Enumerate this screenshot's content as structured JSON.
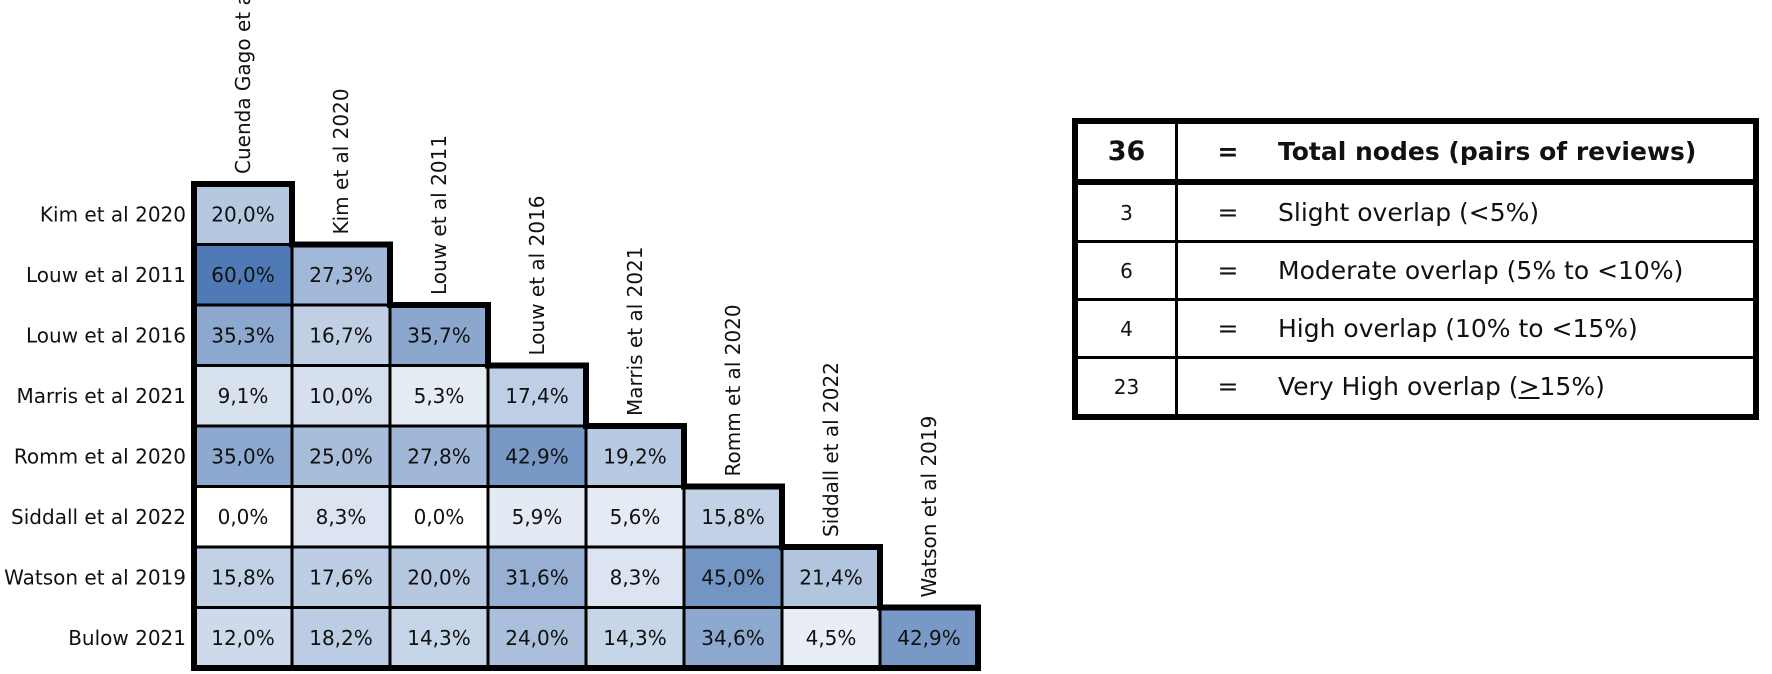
{
  "chart_data": {
    "type": "heatmap",
    "title": "",
    "columns": [
      "Cuenda Gago et a",
      "Kim et al 2020",
      "Louw et al 2011",
      "Louw et al 2016",
      "Marris et al 2021",
      "Romm et al 2020",
      "Siddall et al 2022",
      "Watson et al 2019"
    ],
    "rows": [
      {
        "label": "Kim et al 2020",
        "values": [
          "20,0%"
        ]
      },
      {
        "label": "Louw et al 2011",
        "values": [
          "60,0%",
          "27,3%"
        ]
      },
      {
        "label": "Louw et al 2016",
        "values": [
          "35,3%",
          "16,7%",
          "35,7%"
        ]
      },
      {
        "label": "Marris et al 2021",
        "values": [
          "9,1%",
          "10,0%",
          "5,3%",
          "17,4%"
        ]
      },
      {
        "label": "Romm et al 2020",
        "values": [
          "35,0%",
          "25,0%",
          "27,8%",
          "42,9%",
          "19,2%"
        ]
      },
      {
        "label": "Siddall et al 2022",
        "values": [
          "0,0%",
          "8,3%",
          "0,0%",
          "5,9%",
          "5,6%",
          "15,8%"
        ]
      },
      {
        "label": "Watson et al 2019",
        "values": [
          "15,8%",
          "17,6%",
          "20,0%",
          "31,6%",
          "8,3%",
          "45,0%",
          "21,4%"
        ]
      },
      {
        "label": "Bulow 2021",
        "values": [
          "12,0%",
          "18,2%",
          "14,3%",
          "24,0%",
          "14,3%",
          "34,6%",
          "4,5%",
          "42,9%"
        ]
      }
    ],
    "color_scale": {
      "low": "#ffffff",
      "high": "#4f7ab5",
      "max_value": 60
    }
  },
  "legend": {
    "rows": [
      {
        "count": "36",
        "eq": "=",
        "text": "Total nodes (pairs of reviews)",
        "bold": true
      },
      {
        "count": "3",
        "eq": "=",
        "text": "Slight overlap (<5%)"
      },
      {
        "count": "6",
        "eq": "=",
        "text": "Moderate overlap (5% to <10%)"
      },
      {
        "count": "4",
        "eq": "=",
        "text": "High overlap (10% to <15%)"
      },
      {
        "count": "23",
        "eq": "=",
        "text_before": "Very High overlap (",
        "text_underlined": ">",
        "text_after": "15%)"
      }
    ]
  }
}
